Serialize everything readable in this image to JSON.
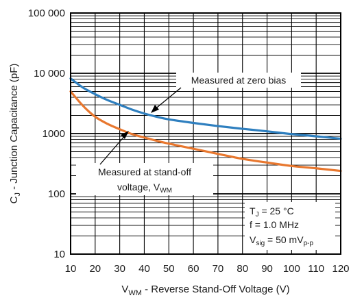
{
  "chart_data": {
    "type": "line",
    "y_scale": "log",
    "xlim": [
      10,
      120
    ],
    "ylim": [
      10,
      100000
    ],
    "grid": true,
    "x_ticks": [
      "10",
      "20",
      "30",
      "40",
      "50",
      "60",
      "70",
      "80",
      "90",
      "100",
      "110",
      "120"
    ],
    "y_ticks": [
      {
        "value": 100000,
        "label": "100 000"
      },
      {
        "value": 10000,
        "label": "10 000"
      },
      {
        "value": 1000,
        "label": "1000"
      },
      {
        "value": 100,
        "label": "100"
      },
      {
        "value": 10,
        "label": "10"
      }
    ],
    "xlabel": {
      "main": "V",
      "sub": "WM",
      "rest": " - Reverse Stand-Off Voltage (V)"
    },
    "ylabel": {
      "main": "C",
      "sub": "J",
      "rest": " - Junction Capacitance (pF)"
    },
    "series": [
      {
        "name": "Measured at zero bias",
        "color": "#2e7fbf",
        "x": [
          10,
          15,
          20,
          25,
          30,
          35,
          40,
          45,
          50,
          60,
          70,
          80,
          90,
          100,
          110,
          120
        ],
        "y": [
          8200,
          5800,
          4500,
          3600,
          3000,
          2500,
          2150,
          1900,
          1720,
          1500,
          1330,
          1200,
          1090,
          980,
          900,
          820
        ]
      },
      {
        "name": "Measured at stand-off voltage, VWM",
        "color": "#e8772e",
        "x": [
          10,
          15,
          20,
          25,
          30,
          35,
          40,
          45,
          50,
          60,
          70,
          80,
          90,
          100,
          110,
          120
        ],
        "y": [
          5000,
          2900,
          1900,
          1450,
          1180,
          980,
          860,
          760,
          680,
          560,
          460,
          380,
          330,
          290,
          265,
          240
        ]
      }
    ],
    "annotations": {
      "zero_bias": "Measured at zero bias",
      "standoff_line1": "Measured at stand-off",
      "standoff_line2_main": "voltage, V",
      "standoff_line2_sub": "WM",
      "cond_tj_main": "T",
      "cond_tj_sub": "J",
      "cond_tj_rest": " = 25 °C",
      "cond_f": "f = 1.0 MHz",
      "cond_vsig_main": "V",
      "cond_vsig_sub": "sig",
      "cond_vsig_rest": " = 50 mV",
      "cond_vsig_sub2": "p-p"
    }
  }
}
